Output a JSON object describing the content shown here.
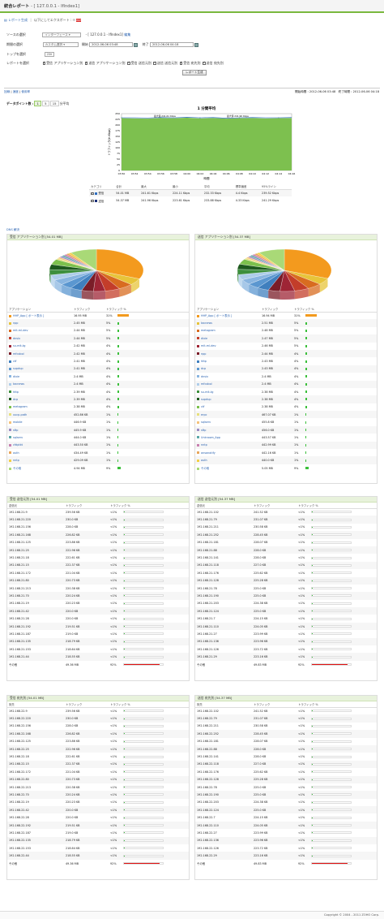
{
  "header": {
    "title": "統合レポート",
    "subtitle": "- [ 127.0.0.1 - IfIndex1]"
  },
  "subnav": {
    "report_gen": "レポート生成",
    "schedule": "以下にしてエクスポート :",
    "pdf_label": "PDF"
  },
  "form": {
    "source_label": "ソースの選択",
    "source_select": "インターフェース",
    "source_value": "- [ 127.0.0.1 - IfIndex1]",
    "source_edit": "編集",
    "period_label": "期間の選択",
    "period_select": "カスタム選択",
    "start_label": "開始",
    "start_value": "2012-06-06 03:48",
    "end_label": "終了",
    "end_value": "2012-06-06 04:18",
    "topn_label": "トップを選択",
    "topn_value": "20",
    "report_label": "レポートを選択",
    "checks": [
      "受信 アプリケーション別",
      "送信 アプリケーション別",
      "受信 送信元別",
      "送信 送信元別",
      "受信 宛先別",
      "送信 宛先別"
    ],
    "generate_button": "レポート生成"
  },
  "bar2": {
    "links": [
      "回線",
      "速度",
      "使用率"
    ],
    "start_label": "開始時間 : 2012-06-06 03:48",
    "end_label": "終了時間 : 2012-06-06 04:18"
  },
  "datapoints": {
    "label": "データポイント数 :",
    "options": [
      "1",
      "5",
      "15",
      "分平均"
    ]
  },
  "chart_data": {
    "type": "area",
    "title": "1 分間平均",
    "ylabel": "トラフィック(in Kbps)",
    "xlabel": "時間",
    "x": [
      "03:50",
      "03:52",
      "03:54",
      "03:56",
      "03:58",
      "04:00",
      "04:02",
      "04:04",
      "04:06",
      "04:08",
      "04:10",
      "04:12",
      "04:14",
      "04:16"
    ],
    "ylim": [
      0,
      250
    ],
    "yticks": [
      "0",
      "25",
      "50",
      "75",
      "100",
      "125",
      "150",
      "175",
      "200",
      "225",
      "250"
    ],
    "series": [
      {
        "name": "受信",
        "color": "#2f6fc0",
        "values": [
          232,
          232,
          231,
          233,
          232,
          234,
          232,
          233,
          230,
          232,
          233,
          232,
          232,
          233
        ]
      },
      {
        "name": "送信",
        "color": "#7dc04f",
        "values": [
          230,
          229,
          228,
          231,
          230,
          232,
          229,
          231,
          228,
          230,
          231,
          229,
          230,
          231
        ]
      }
    ],
    "annotations": [
      "最大値 241.61 Kbps",
      "最大値 241.96 Kbps"
    ]
  },
  "summary": {
    "headers": [
      "カテゴリ",
      "合計",
      "最大",
      "最小",
      "平均",
      "標準偏差",
      "95%ライン"
    ],
    "rows": [
      {
        "name": "受信",
        "color": "#2f6fc0",
        "cells": [
          "54.01 MB",
          "241.61 Kbps",
          "224.11 Kbps",
          "232.33 Kbps",
          "4.4 Kbps",
          "239.52 Kbps"
        ]
      },
      {
        "name": "送信",
        "color": "#1a2d78",
        "cells": [
          "54.37 MB",
          "241.96 Kbps",
          "223.61 Kbps",
          "233.88 Kbps",
          "4.33 Kbps",
          "241.29 Kbps"
        ]
      }
    ]
  },
  "dns_label": "DNS 解決",
  "app_in": {
    "title": "受信 アプリケーション別 [54.01 MB]",
    "headers": [
      "アプリケーション",
      "トラフィック",
      "トラフィック %"
    ],
    "rows": [
      [
        "HHP_App",
        "16.95 MB",
        "31%",
        31,
        "#f39a1e"
      ],
      [
        "npp",
        "2.45 MB",
        "5%",
        5,
        "#e7c43a"
      ],
      [
        "mit-ml-dev",
        "2.44 MB",
        "5%",
        5,
        "#d86c20"
      ],
      [
        "dnsix",
        "2.44 MB",
        "5%",
        5,
        "#c33d2a"
      ],
      [
        "su-mit-tg",
        "2.42 MB",
        "4%",
        4,
        "#9e2535"
      ],
      [
        "mfcobol",
        "2.42 MB",
        "4%",
        4,
        "#7a1d28"
      ],
      [
        "ctf",
        "2.41 MB",
        "4%",
        4,
        "#3f7fbe"
      ],
      [
        "supdup",
        "2.41 MB",
        "4%",
        4,
        "#5b97d0"
      ],
      [
        "dixie",
        "2.4 MB",
        "4%",
        4,
        "#89b5e0"
      ],
      [
        "tacnews",
        "2.4 MB",
        "4%",
        4,
        "#aecdea"
      ],
      [
        "http",
        "2.39 MB",
        "4%",
        4,
        "#3d8f3d"
      ],
      [
        "dcp",
        "2.39 MB",
        "4%",
        4,
        "#1e5a1e"
      ],
      [
        "metagram",
        "2.38 MB",
        "4%",
        4,
        "#7cc04c"
      ],
      [
        "uucp-path",
        "452.86 KB",
        "1%",
        1,
        "#e8e07a"
      ],
      [
        "mobile",
        "446.9 KB",
        "1%",
        1,
        "#f5c27a"
      ],
      [
        "sftp",
        "445.9 KB",
        "1%",
        1,
        "#9a8bc4"
      ],
      [
        "sqlserv",
        "444.0 KB",
        "1%",
        1,
        "#5ba7a7"
      ],
      [
        "cfdptkt",
        "443.50 KB",
        "1%",
        1,
        "#c77fb0"
      ],
      [
        "auth",
        "434.49 KB",
        "1%",
        1,
        "#e8a65c"
      ],
      [
        "nntp",
        "429.09 KB",
        "1%",
        1,
        "#f3cf45"
      ],
      [
        "その他",
        "4.94 MB",
        "9%",
        9,
        "#a9d977"
      ]
    ],
    "app_link": "ポート表示"
  },
  "app_out": {
    "title": "送信 アプリケーション別 [54.37 MB]",
    "headers": [
      "アプリケーション",
      "トラフィック",
      "トラフィック %"
    ],
    "rows": [
      [
        "HHP_App",
        "16.94 MB",
        "31%",
        31,
        "#f39a1e"
      ],
      [
        "tacnews",
        "2.51 MB",
        "5%",
        5,
        "#e7c43a"
      ],
      [
        "metagram",
        "2.48 MB",
        "5%",
        5,
        "#d86c20"
      ],
      [
        "dixie",
        "2.47 MB",
        "5%",
        5,
        "#c33d2a"
      ],
      [
        "mit-ml-dev",
        "2.46 MB",
        "5%",
        5,
        "#9e2535"
      ],
      [
        "npp",
        "2.44 MB",
        "4%",
        4,
        "#7a1d28"
      ],
      [
        "http",
        "2.43 MB",
        "4%",
        4,
        "#3f7fbe"
      ],
      [
        "dcp",
        "2.43 MB",
        "4%",
        4,
        "#5b97d0"
      ],
      [
        "dnsix",
        "2.4 MB",
        "4%",
        4,
        "#89b5e0"
      ],
      [
        "mfcobol",
        "2.4 MB",
        "4%",
        4,
        "#aecdea"
      ],
      [
        "su-mit-tg",
        "2.38 MB",
        "4%",
        4,
        "#3d8f3d"
      ],
      [
        "supdup",
        "2.38 MB",
        "4%",
        4,
        "#1e5a1e"
      ],
      [
        "ctf",
        "2.38 MB",
        "4%",
        4,
        "#7cc04c"
      ],
      [
        "erpc",
        "467.07 KB",
        "1%",
        1,
        "#e8e07a"
      ],
      [
        "sqlserv",
        "455.8 KB",
        "1%",
        1,
        "#f5c27a"
      ],
      [
        "sftp",
        "456.0 KB",
        "1%",
        1,
        "#9a8bc4"
      ],
      [
        "Unknown_App",
        "443.57 KB",
        "1%",
        1,
        "#5ba7a7"
      ],
      [
        "nntp",
        "442.99 KB",
        "1%",
        1,
        "#c77fb0"
      ],
      [
        "ansanotify",
        "442.16 KB",
        "1%",
        1,
        "#e8a65c"
      ],
      [
        "auth",
        "440.0 KB",
        "1%",
        1,
        "#f3cf45"
      ],
      [
        "その他",
        "5.05 MB",
        "9%",
        9,
        "#a9d977"
      ]
    ],
    "app_link": "ポート表示"
  },
  "src_in": {
    "title": "受信 送信元別 [54.01 MB]",
    "headers": [
      "送信元",
      "トラフィック",
      "トラフィック %"
    ],
    "rows": [
      [
        "192.168.21.9",
        "239.56 KB",
        "<1%"
      ],
      [
        "192.168.21.220",
        "230.0 KB",
        "<1%"
      ],
      [
        "192.168.21.156",
        "228.0 KB",
        "<1%"
      ],
      [
        "192.168.21.168",
        "226.82 KB",
        "<1%"
      ],
      [
        "192.168.21.125",
        "223.86 KB",
        "<1%"
      ],
      [
        "192.168.21.25",
        "222.96 KB",
        "<1%"
      ],
      [
        "192.168.21.18",
        "222.61 KB",
        "<1%"
      ],
      [
        "192.168.21.15",
        "222.37 KB",
        "<1%"
      ],
      [
        "192.168.21.172",
        "221.04 KB",
        "<1%"
      ],
      [
        "192.168.21.80",
        "220.73 KB",
        "<1%"
      ],
      [
        "192.168.21.213",
        "220.38 KB",
        "<1%"
      ],
      [
        "192.168.21.70",
        "220.24 KB",
        "<1%"
      ],
      [
        "192.168.21.19",
        "220.23 KB",
        "<1%"
      ],
      [
        "192.168.21.42",
        "220.0 KB",
        "<1%"
      ],
      [
        "192.168.21.28",
        "220.0 KB",
        "<1%"
      ],
      [
        "192.168.21.192",
        "219.51 KB",
        "<1%"
      ],
      [
        "192.168.21.187",
        "219.0 KB",
        "<1%"
      ],
      [
        "192.168.21.135",
        "218.79 KB",
        "<1%"
      ],
      [
        "192.168.21.153",
        "218.64 KB",
        "<1%"
      ],
      [
        "192.168.21.44",
        "218.55 KB",
        "<1%"
      ],
      [
        "その他",
        "49.36 MB",
        "92%"
      ]
    ]
  },
  "src_out": {
    "title": "送信 送信元別 [54.37 MB]",
    "headers": [
      "送信元",
      "トラフィック",
      "トラフィック %"
    ],
    "rows": [
      [
        "192.168.21.102",
        "241.52 KB",
        "<1%"
      ],
      [
        "192.168.21.79",
        "231.07 KB",
        "<1%"
      ],
      [
        "192.168.21.211",
        "230.58 KB",
        "<1%"
      ],
      [
        "192.168.21.252",
        "228.45 KB",
        "<1%"
      ],
      [
        "192.168.21.181",
        "228.07 KB",
        "<1%"
      ],
      [
        "192.168.21.88",
        "228.0 KB",
        "<1%"
      ],
      [
        "192.168.21.141",
        "228.0 KB",
        "<1%"
      ],
      [
        "192.168.21.118",
        "227.0 KB",
        "<1%"
      ],
      [
        "192.168.21.176",
        "225.62 KB",
        "<1%"
      ],
      [
        "192.168.21.128",
        "225.28 KB",
        "<1%"
      ],
      [
        "192.168.21.78",
        "225.0 KB",
        "<1%"
      ],
      [
        "192.168.21.190",
        "225.0 KB",
        "<1%"
      ],
      [
        "192.168.21.203",
        "224.38 KB",
        "<1%"
      ],
      [
        "192.168.21.124",
        "225.0 KB",
        "<1%"
      ],
      [
        "192.168.21.7",
        "224.15 KB",
        "<1%"
      ],
      [
        "192.168.21.110",
        "224.05 KB",
        "<1%"
      ],
      [
        "192.168.21.27",
        "223.99 KB",
        "<1%"
      ],
      [
        "192.168.21.136",
        "223.96 KB",
        "<1%"
      ],
      [
        "192.168.21.126",
        "223.72 KB",
        "<1%"
      ],
      [
        "192.168.21.29",
        "223.16 KB",
        "<1%"
      ],
      [
        "その他",
        "49.83 MB",
        "92%"
      ]
    ]
  },
  "dst_in": {
    "title": "受信 宛先別 [54.01 MB]",
    "headers": [
      "宛先",
      "トラフィック",
      "トラフィック %"
    ],
    "rows": [
      [
        "192.168.22.9",
        "239.56 KB",
        "<1%"
      ],
      [
        "192.168.22.220",
        "230.0 KB",
        "<1%"
      ],
      [
        "192.168.22.156",
        "228.0 KB",
        "<1%"
      ],
      [
        "192.168.22.168",
        "226.82 KB",
        "<1%"
      ],
      [
        "192.168.22.125",
        "223.86 KB",
        "<1%"
      ],
      [
        "192.168.22.25",
        "222.96 KB",
        "<1%"
      ],
      [
        "192.168.22.18",
        "222.61 KB",
        "<1%"
      ],
      [
        "192.168.22.15",
        "222.37 KB",
        "<1%"
      ],
      [
        "192.168.22.172",
        "221.04 KB",
        "<1%"
      ],
      [
        "192.168.22.80",
        "220.73 KB",
        "<1%"
      ],
      [
        "192.168.22.213",
        "220.38 KB",
        "<1%"
      ],
      [
        "192.168.22.70",
        "220.24 KB",
        "<1%"
      ],
      [
        "192.168.22.19",
        "220.23 KB",
        "<1%"
      ],
      [
        "192.168.22.42",
        "220.0 KB",
        "<1%"
      ],
      [
        "192.168.22.28",
        "220.0 KB",
        "<1%"
      ],
      [
        "192.168.22.192",
        "219.51 KB",
        "<1%"
      ],
      [
        "192.168.22.187",
        "219.0 KB",
        "<1%"
      ],
      [
        "192.168.22.135",
        "218.79 KB",
        "<1%"
      ],
      [
        "192.168.22.153",
        "218.64 KB",
        "<1%"
      ],
      [
        "192.168.22.44",
        "218.55 KB",
        "<1%"
      ],
      [
        "その他",
        "49.36 MB",
        "92%"
      ]
    ]
  },
  "dst_out": {
    "title": "送信 宛先別 [54.37 MB]",
    "headers": [
      "宛先",
      "トラフィック",
      "トラフィック %"
    ],
    "rows": [
      [
        "192.168.22.102",
        "241.52 KB",
        "<1%"
      ],
      [
        "192.168.22.79",
        "231.07 KB",
        "<1%"
      ],
      [
        "192.168.22.211",
        "230.58 KB",
        "<1%"
      ],
      [
        "192.168.22.252",
        "228.45 KB",
        "<1%"
      ],
      [
        "192.168.22.181",
        "228.07 KB",
        "<1%"
      ],
      [
        "192.168.22.88",
        "228.0 KB",
        "<1%"
      ],
      [
        "192.168.22.141",
        "228.0 KB",
        "<1%"
      ],
      [
        "192.168.22.118",
        "227.0 KB",
        "<1%"
      ],
      [
        "192.168.22.176",
        "225.62 KB",
        "<1%"
      ],
      [
        "192.168.22.128",
        "225.28 KB",
        "<1%"
      ],
      [
        "192.168.22.78",
        "225.0 KB",
        "<1%"
      ],
      [
        "192.168.22.190",
        "225.0 KB",
        "<1%"
      ],
      [
        "192.168.22.203",
        "224.38 KB",
        "<1%"
      ],
      [
        "192.168.22.124",
        "225.0 KB",
        "<1%"
      ],
      [
        "192.168.22.7",
        "224.15 KB",
        "<1%"
      ],
      [
        "192.168.22.110",
        "224.05 KB",
        "<1%"
      ],
      [
        "192.168.22.27",
        "223.99 KB",
        "<1%"
      ],
      [
        "192.168.22.136",
        "223.96 KB",
        "<1%"
      ],
      [
        "192.168.22.126",
        "223.72 KB",
        "<1%"
      ],
      [
        "192.168.22.29",
        "223.16 KB",
        "<1%"
      ],
      [
        "その他",
        "49.83 MB",
        "92%"
      ]
    ]
  },
  "footer": {
    "copyright": "Copyright © 2004 - 2011 ZOHO Corp."
  },
  "colors": {
    "accent": "#7ab83e",
    "link": "#2a62b0",
    "bar_green": "#3bbf3b",
    "bar_red": "#e01010"
  }
}
